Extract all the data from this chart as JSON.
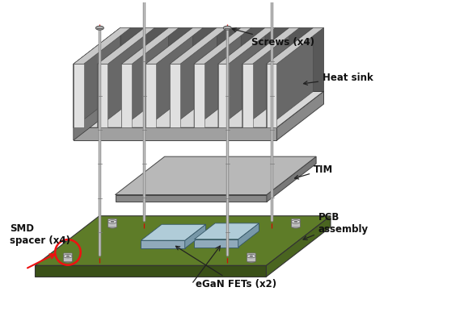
{
  "background_color": "#ffffff",
  "figure_size": [
    5.79,
    4.13
  ],
  "dpi": 100,
  "labels": {
    "screws": "Screws (x4)",
    "heat_sink": "Heat sink",
    "tim": "TIM",
    "pcb_assembly": "PCB\nassembly",
    "smd_spacer": "SMD\nspacer (x4)",
    "egan_fets": "eGaN FETs (x2)"
  },
  "colors": {
    "pcb_green_top": "#5e7c28",
    "pcb_green_dark": "#3a5018",
    "pcb_green_right": "#4a6520",
    "hs_base_front": "#a0a0a0",
    "hs_base_top": "#d8d8d8",
    "hs_base_right": "#888888",
    "hs_fin_front_light": "#e8e8e8",
    "hs_fin_front_dark": "#707070",
    "hs_fin_back": "#585858",
    "hs_fin_top": "#c8c8c8",
    "tim_top": "#b8b8b8",
    "tim_front": "#888888",
    "tim_right": "#787878",
    "spacer_top": "#d0d0d0",
    "spacer_side": "#a0a0a0",
    "fet_top": "#b0ccd8",
    "fet_front": "#90aabb",
    "fet_right": "#7898a8",
    "screw_shaft": "#909090",
    "screw_head": "#b0b0b0",
    "red_dashed": "#dd0000",
    "arrow_color": "#222222",
    "text_color": "#111111",
    "circle_color": "#ee1111"
  }
}
